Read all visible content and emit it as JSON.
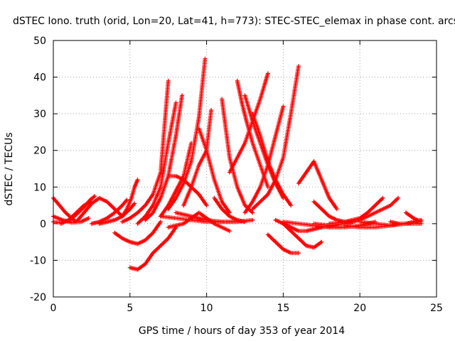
{
  "chart_data": {
    "type": "scatter",
    "title": "dSTEC Iono. truth (orid, Lon=20, Lat=41, h=773): STEC-STEC_elemax in phase cont. arcs",
    "xlabel": "GPS time / hours of day 353 of year 2014",
    "ylabel": "dSTEC  / TECUs",
    "xlim": [
      0,
      25
    ],
    "ylim": [
      -20,
      50
    ],
    "xticks": [
      0,
      5,
      10,
      15,
      20,
      25
    ],
    "yticks": [
      -20,
      -10,
      0,
      10,
      20,
      30,
      40,
      50
    ],
    "grid": true,
    "marker": "+",
    "color": "#ff0000",
    "series": [
      {
        "x": [
          0.0,
          0.4,
          0.8,
          1.2,
          1.5
        ],
        "y": [
          7,
          5,
          3,
          1.5,
          0.5
        ]
      },
      {
        "x": [
          0.0,
          0.5,
          1.0,
          1.5,
          2.0,
          2.4,
          2.7
        ],
        "y": [
          0.5,
          0.3,
          0.8,
          2.5,
          4.5,
          6.5,
          7.5
        ]
      },
      {
        "x": [
          0.0,
          0.6,
          1.2,
          1.8,
          2.3
        ],
        "y": [
          2,
          1,
          0.3,
          0.5,
          1.5
        ]
      },
      {
        "x": [
          0.5,
          1.0,
          1.5,
          2.0,
          2.5
        ],
        "y": [
          0,
          1,
          3,
          5,
          6
        ]
      },
      {
        "x": [
          1.5,
          2.0,
          2.5,
          3.0,
          3.5,
          4.0,
          4.5
        ],
        "y": [
          0.5,
          3,
          5.5,
          7,
          6,
          4,
          2
        ]
      },
      {
        "x": [
          2.5,
          3.0,
          3.5,
          4.0,
          4.5,
          4.8
        ],
        "y": [
          0,
          0.5,
          1.5,
          3,
          5,
          6.5
        ]
      },
      {
        "x": [
          3.0,
          3.5,
          4.0,
          4.5,
          5.0,
          5.3
        ],
        "y": [
          0,
          0.5,
          1,
          2,
          4,
          5.5
        ]
      },
      {
        "x": [
          4.5,
          4.8,
          5.1,
          5.3,
          5.5
        ],
        "y": [
          2,
          4,
          7,
          10,
          12
        ]
      },
      {
        "x": [
          4.0,
          4.5,
          5.0,
          5.5,
          6.0,
          6.5,
          7.0
        ],
        "y": [
          -2.5,
          -4,
          -5,
          -5.5,
          -4.5,
          -2.5,
          0.5
        ]
      },
      {
        "x": [
          5.0,
          5.5,
          6.0,
          6.5,
          7.0,
          7.5,
          8.0
        ],
        "y": [
          -12,
          -12.5,
          -11,
          -8,
          -6,
          -4,
          -1
        ]
      },
      {
        "x": [
          4.5,
          5.0,
          5.5,
          6.0,
          6.5,
          7.0,
          7.5
        ],
        "y": [
          0.5,
          1.5,
          3,
          5,
          8,
          14,
          39
        ]
      },
      {
        "x": [
          5.5,
          6.0,
          6.5,
          7.0,
          7.5,
          8.0
        ],
        "y": [
          0,
          2,
          5,
          10,
          22,
          33
        ]
      },
      {
        "x": [
          6.0,
          6.5,
          7.0,
          7.5,
          8.0,
          8.4
        ],
        "y": [
          1,
          3,
          7,
          13,
          24,
          35
        ]
      },
      {
        "x": [
          7.0,
          7.5,
          8.0,
          8.5,
          9.0
        ],
        "y": [
          2,
          5,
          9,
          13,
          22
        ]
      },
      {
        "x": [
          7.5,
          8.0,
          8.5,
          9.0,
          9.5,
          9.9
        ],
        "y": [
          4,
          7,
          11,
          17,
          29,
          45
        ]
      },
      {
        "x": [
          8.5,
          9.0,
          9.5,
          10.0,
          10.3
        ],
        "y": [
          5,
          10,
          16,
          20,
          31
        ]
      },
      {
        "x": [
          7.5,
          8.0,
          8.5,
          9.0,
          9.5,
          10.0
        ],
        "y": [
          13,
          13,
          12,
          10,
          8,
          5
        ]
      },
      {
        "x": [
          9.5,
          10.0,
          10.5,
          11.0,
          11.5
        ],
        "y": [
          26,
          20,
          12,
          6,
          3
        ]
      },
      {
        "x": [
          7.0,
          8.0,
          9.0,
          10.0,
          11.0,
          12.0
        ],
        "y": [
          2,
          1.5,
          1,
          0.5,
          0.5,
          0.5
        ]
      },
      {
        "x": [
          7.5,
          8.5,
          9.5,
          10.5,
          11.5
        ],
        "y": [
          -1,
          0,
          3,
          0,
          -2
        ]
      },
      {
        "x": [
          8.0,
          9.0,
          10.0,
          11.0,
          12.0,
          13.0
        ],
        "y": [
          3,
          2,
          1,
          0.5,
          0.5,
          1
        ]
      },
      {
        "x": [
          10.5,
          11.0,
          11.5,
          12.0,
          12.5
        ],
        "y": [
          7,
          4,
          2,
          1,
          0.5
        ]
      },
      {
        "x": [
          11.0,
          11.5,
          12.0,
          12.5,
          13.0
        ],
        "y": [
          34,
          18,
          10,
          5,
          3
        ]
      },
      {
        "x": [
          12.0,
          12.3,
          12.6,
          13.0,
          13.5,
          14.0
        ],
        "y": [
          39,
          33,
          28,
          22,
          16,
          10
        ]
      },
      {
        "x": [
          12.5,
          13.0,
          13.5,
          14.0,
          14.5,
          15.0
        ],
        "y": [
          35,
          28,
          22,
          16,
          11,
          7
        ]
      },
      {
        "x": [
          13.0,
          13.5,
          14.0,
          14.5,
          15.0,
          15.5
        ],
        "y": [
          30,
          24,
          17,
          12,
          8,
          5
        ]
      },
      {
        "x": [
          11.5,
          12.0,
          12.5,
          13.0,
          13.5,
          14.0
        ],
        "y": [
          14,
          18,
          22,
          28,
          34,
          41
        ]
      },
      {
        "x": [
          12.5,
          13.0,
          13.5,
          14.0,
          14.5,
          15.0
        ],
        "y": [
          3,
          6,
          10,
          16,
          24,
          32
        ]
      },
      {
        "x": [
          13.0,
          14.0,
          14.5,
          15.0,
          15.5,
          16.0
        ],
        "y": [
          4,
          8,
          12,
          18,
          30,
          43
        ]
      },
      {
        "x": [
          14.0,
          14.5,
          15.0,
          15.5,
          16.0
        ],
        "y": [
          -3,
          -5,
          -7,
          -8,
          -8
        ]
      },
      {
        "x": [
          15.0,
          15.5,
          16.0,
          16.5,
          17.0,
          17.5
        ],
        "y": [
          0,
          -2,
          -4,
          -6,
          -6.5,
          -5
        ]
      },
      {
        "x": [
          16.0,
          16.5,
          17.0,
          17.5,
          18.0,
          18.5
        ],
        "y": [
          11,
          14,
          17,
          12,
          7,
          4
        ]
      },
      {
        "x": [
          17.0,
          17.5,
          18.0,
          18.5,
          19.0,
          19.5
        ],
        "y": [
          6,
          4,
          2,
          1,
          0.5,
          0.5
        ]
      },
      {
        "x": [
          14.5,
          15.0,
          15.5,
          16.0,
          16.5,
          17.0,
          17.5,
          18.5
        ],
        "y": [
          1,
          0,
          -1,
          -2,
          -2,
          -1.5,
          -1,
          -0.5
        ]
      },
      {
        "x": [
          15.0,
          16.0,
          17.0,
          18.0,
          19.0,
          20.0,
          21.0
        ],
        "y": [
          0.5,
          0,
          -0.5,
          -1,
          -1,
          -0.5,
          0.5
        ]
      },
      {
        "x": [
          17.0,
          18.0,
          19.0,
          20.0,
          21.0,
          22.0,
          22.5
        ],
        "y": [
          0,
          -0.5,
          0,
          1,
          3,
          5,
          7
        ]
      },
      {
        "x": [
          18.0,
          19.0,
          20.0,
          20.5,
          21.0,
          21.5
        ],
        "y": [
          0,
          0.5,
          1.5,
          3,
          5,
          7
        ]
      },
      {
        "x": [
          19.0,
          20.0,
          21.0,
          22.0,
          22.5
        ],
        "y": [
          -0.5,
          -1,
          -1,
          -0.5,
          0
        ]
      },
      {
        "x": [
          20.0,
          21.0,
          22.0,
          23.0,
          24.0
        ],
        "y": [
          0.5,
          0,
          -0.5,
          0,
          0
        ]
      },
      {
        "x": [
          22.0,
          22.5,
          23.0,
          23.5,
          24.0
        ],
        "y": [
          0.5,
          0,
          0,
          0.5,
          1
        ]
      },
      {
        "x": [
          23.0,
          23.5,
          24.0
        ],
        "y": [
          3,
          1.5,
          0.5
        ]
      }
    ]
  }
}
